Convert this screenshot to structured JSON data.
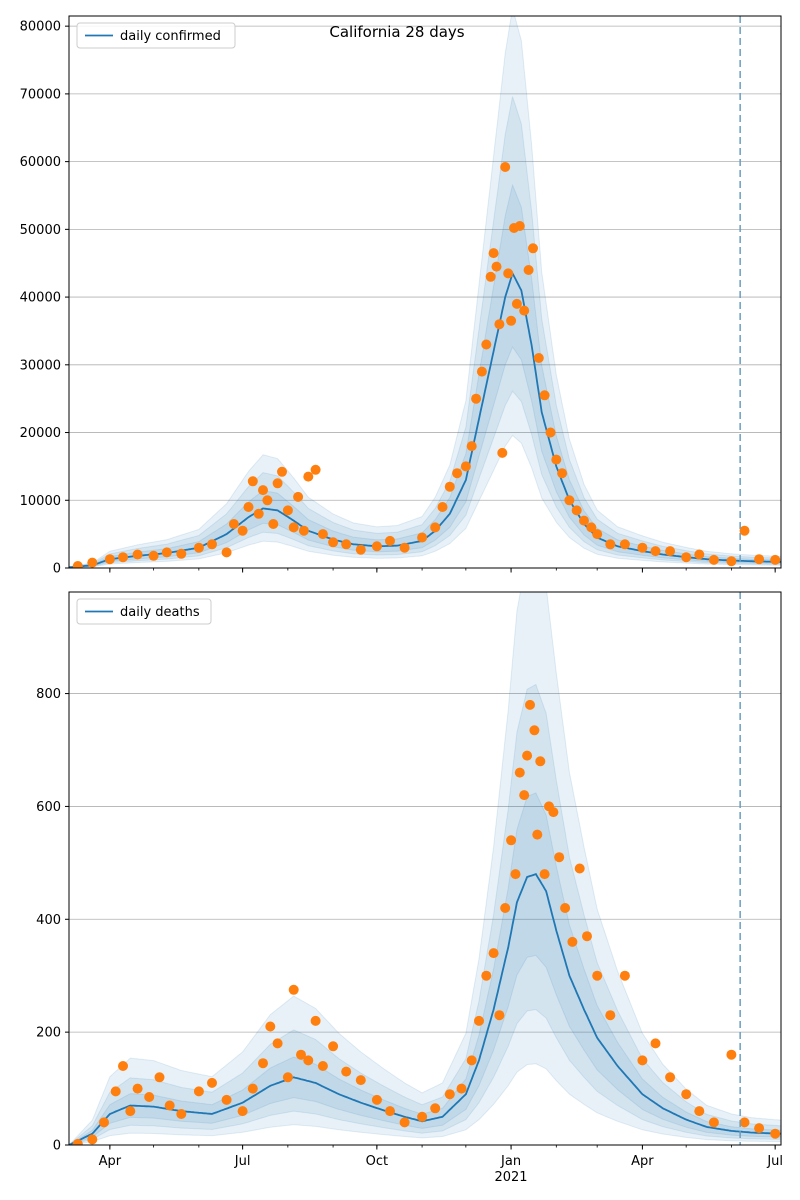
{
  "figure_title": "California 28 days",
  "colors": {
    "line": "#1f77b4",
    "points": "#ff7f0e",
    "band": "#1f77b4",
    "grid": "#b0b0b0",
    "vline": "#6a9fbf"
  },
  "x_axis": {
    "tick_labels": [
      "Apr",
      "Jul",
      "Oct",
      "Jan",
      "Apr",
      "Jul"
    ],
    "tick_dates": [
      "2020-04-01",
      "2020-07-01",
      "2020-10-01",
      "2021-01-01",
      "2021-04-01",
      "2021-07-01"
    ],
    "year_label": "2021",
    "start_date": "2020-03-04",
    "end_date": "2021-07-05",
    "forecast_start": "2021-06-07"
  },
  "chart_data": [
    {
      "type": "line",
      "title": "",
      "legend": "daily confirmed",
      "legend_placement": "top-left",
      "grid": "y",
      "ylim": [
        0,
        81500
      ],
      "y_ticks": [
        0,
        10000,
        20000,
        30000,
        40000,
        50000,
        60000,
        70000,
        80000
      ],
      "y_tick_labels": [
        "0",
        "10000",
        "20000",
        "30000",
        "40000",
        "50000",
        "60000",
        "70000",
        "80000"
      ],
      "series_model": {
        "name": "daily confirmed",
        "x": [
          "2020-03-04",
          "2020-03-20",
          "2020-04-01",
          "2020-04-20",
          "2020-05-10",
          "2020-06-01",
          "2020-06-20",
          "2020-07-05",
          "2020-07-15",
          "2020-07-25",
          "2020-08-05",
          "2020-08-15",
          "2020-09-01",
          "2020-09-15",
          "2020-10-01",
          "2020-10-15",
          "2020-11-01",
          "2020-11-10",
          "2020-11-20",
          "2020-12-01",
          "2020-12-10",
          "2020-12-20",
          "2020-12-28",
          "2021-01-02",
          "2021-01-08",
          "2021-01-15",
          "2021-01-22",
          "2021-02-01",
          "2021-02-10",
          "2021-02-20",
          "2021-03-01",
          "2021-03-15",
          "2021-04-01",
          "2021-04-15",
          "2021-05-01",
          "2021-05-15",
          "2021-06-01",
          "2021-06-15",
          "2021-07-05"
        ],
        "y": [
          100,
          400,
          1300,
          1800,
          2200,
          3000,
          5000,
          7500,
          8800,
          8500,
          7000,
          5500,
          4200,
          3500,
          3200,
          3300,
          4000,
          5500,
          8000,
          13000,
          22000,
          32000,
          40000,
          43500,
          41000,
          33000,
          23000,
          15000,
          10000,
          6500,
          4500,
          3200,
          2500,
          2000,
          1600,
          1300,
          1100,
          1000,
          900
        ],
        "band_multipliers": [
          [
            0.75,
            1.3
          ],
          [
            0.6,
            1.6
          ],
          [
            0.45,
            1.9
          ]
        ]
      },
      "series_observed": {
        "name": "",
        "x": [
          "2020-03-10",
          "2020-03-20",
          "2020-04-01",
          "2020-04-10",
          "2020-04-20",
          "2020-05-01",
          "2020-05-10",
          "2020-05-20",
          "2020-06-01",
          "2020-06-10",
          "2020-06-20",
          "2020-06-25",
          "2020-07-01",
          "2020-07-05",
          "2020-07-08",
          "2020-07-12",
          "2020-07-15",
          "2020-07-18",
          "2020-07-22",
          "2020-07-25",
          "2020-07-28",
          "2020-08-01",
          "2020-08-05",
          "2020-08-08",
          "2020-08-12",
          "2020-08-15",
          "2020-08-20",
          "2020-08-25",
          "2020-09-01",
          "2020-09-10",
          "2020-09-20",
          "2020-10-01",
          "2020-10-10",
          "2020-10-20",
          "2020-11-01",
          "2020-11-10",
          "2020-11-15",
          "2020-11-20",
          "2020-11-25",
          "2020-12-01",
          "2020-12-05",
          "2020-12-08",
          "2020-12-12",
          "2020-12-15",
          "2020-12-18",
          "2020-12-20",
          "2020-12-22",
          "2020-12-24",
          "2020-12-26",
          "2020-12-28",
          "2020-12-30",
          "2021-01-01",
          "2021-01-03",
          "2021-01-05",
          "2021-01-07",
          "2021-01-10",
          "2021-01-13",
          "2021-01-16",
          "2021-01-20",
          "2021-01-24",
          "2021-01-28",
          "2021-02-01",
          "2021-02-05",
          "2021-02-10",
          "2021-02-15",
          "2021-02-20",
          "2021-02-25",
          "2021-03-01",
          "2021-03-10",
          "2021-03-20",
          "2021-04-01",
          "2021-04-10",
          "2021-04-20",
          "2021-05-01",
          "2021-05-10",
          "2021-05-20",
          "2021-06-01",
          "2021-06-10",
          "2021-06-20",
          "2021-07-01"
        ],
        "y": [
          300,
          800,
          1300,
          1600,
          2000,
          1800,
          2300,
          2100,
          3000,
          3500,
          2300,
          6500,
          5500,
          9000,
          12800,
          8000,
          11500,
          10000,
          6500,
          12500,
          14200,
          8500,
          6000,
          10500,
          5500,
          13500,
          14500,
          5000,
          3800,
          3500,
          2700,
          3200,
          4000,
          3000,
          4500,
          6000,
          9000,
          12000,
          14000,
          15000,
          18000,
          25000,
          29000,
          33000,
          43000,
          46500,
          44500,
          36000,
          17000,
          59200,
          43500,
          36500,
          50200,
          39000,
          50500,
          38000,
          44000,
          47200,
          31000,
          25500,
          20000,
          16000,
          14000,
          10000,
          8500,
          7000,
          6000,
          5000,
          3500,
          3500,
          3000,
          2500,
          2500,
          1600,
          2000,
          1200,
          1000,
          5500,
          1300,
          1200
        ]
      }
    },
    {
      "type": "line",
      "title": "",
      "legend": "daily deaths",
      "legend_placement": "top-left",
      "grid": "y",
      "ylim": [
        0,
        980
      ],
      "y_ticks": [
        0,
        200,
        400,
        600,
        800
      ],
      "y_tick_labels": [
        "0",
        "200",
        "400",
        "600",
        "800"
      ],
      "series_model": {
        "name": "daily deaths",
        "x": [
          "2020-03-04",
          "2020-03-20",
          "2020-04-01",
          "2020-04-15",
          "2020-05-01",
          "2020-05-20",
          "2020-06-10",
          "2020-07-01",
          "2020-07-20",
          "2020-08-05",
          "2020-08-20",
          "2020-09-05",
          "2020-09-20",
          "2020-10-05",
          "2020-10-20",
          "2020-11-01",
          "2020-11-15",
          "2020-12-01",
          "2020-12-10",
          "2020-12-20",
          "2020-12-30",
          "2021-01-05",
          "2021-01-12",
          "2021-01-18",
          "2021-01-25",
          "2021-02-01",
          "2021-02-10",
          "2021-02-20",
          "2021-03-01",
          "2021-03-15",
          "2021-04-01",
          "2021-04-15",
          "2021-05-01",
          "2021-05-15",
          "2021-06-01",
          "2021-06-15",
          "2021-07-05"
        ],
        "y": [
          0,
          20,
          55,
          70,
          68,
          60,
          55,
          75,
          105,
          120,
          110,
          90,
          75,
          62,
          50,
          42,
          50,
          90,
          150,
          240,
          350,
          430,
          475,
          480,
          450,
          380,
          300,
          240,
          190,
          140,
          90,
          65,
          45,
          32,
          25,
          22,
          20
        ],
        "band_multipliers": [
          [
            0.7,
            1.3
          ],
          [
            0.5,
            1.7
          ],
          [
            0.3,
            2.2
          ]
        ]
      },
      "series_observed": {
        "name": "",
        "x": [
          "2020-03-10",
          "2020-03-20",
          "2020-03-28",
          "2020-04-05",
          "2020-04-10",
          "2020-04-15",
          "2020-04-20",
          "2020-04-28",
          "2020-05-05",
          "2020-05-12",
          "2020-05-20",
          "2020-06-01",
          "2020-06-10",
          "2020-06-20",
          "2020-07-01",
          "2020-07-08",
          "2020-07-15",
          "2020-07-20",
          "2020-07-25",
          "2020-08-01",
          "2020-08-05",
          "2020-08-10",
          "2020-08-15",
          "2020-08-20",
          "2020-08-25",
          "2020-09-01",
          "2020-09-10",
          "2020-09-20",
          "2020-10-01",
          "2020-10-10",
          "2020-10-20",
          "2020-11-01",
          "2020-11-10",
          "2020-11-20",
          "2020-11-28",
          "2020-12-05",
          "2020-12-10",
          "2020-12-15",
          "2020-12-20",
          "2020-12-24",
          "2020-12-28",
          "2021-01-01",
          "2021-01-04",
          "2021-01-07",
          "2021-01-10",
          "2021-01-12",
          "2021-01-14",
          "2021-01-17",
          "2021-01-19",
          "2021-01-21",
          "2021-01-24",
          "2021-01-27",
          "2021-01-30",
          "2021-02-03",
          "2021-02-07",
          "2021-02-12",
          "2021-02-17",
          "2021-02-22",
          "2021-03-01",
          "2021-03-10",
          "2021-03-20",
          "2021-04-01",
          "2021-04-10",
          "2021-04-20",
          "2021-05-01",
          "2021-05-10",
          "2021-05-20",
          "2021-06-01",
          "2021-06-10",
          "2021-06-20",
          "2021-07-01"
        ],
        "y": [
          2,
          10,
          40,
          95,
          140,
          60,
          100,
          85,
          120,
          70,
          55,
          95,
          110,
          80,
          60,
          100,
          145,
          210,
          180,
          120,
          275,
          160,
          150,
          220,
          140,
          175,
          130,
          115,
          80,
          60,
          40,
          50,
          65,
          90,
          100,
          150,
          220,
          300,
          340,
          230,
          420,
          540,
          480,
          660,
          620,
          690,
          780,
          735,
          550,
          680,
          480,
          600,
          590,
          510,
          420,
          360,
          490,
          370,
          300,
          230,
          300,
          150,
          180,
          120,
          90,
          60,
          40,
          160,
          40,
          30,
          20
        ]
      }
    }
  ]
}
